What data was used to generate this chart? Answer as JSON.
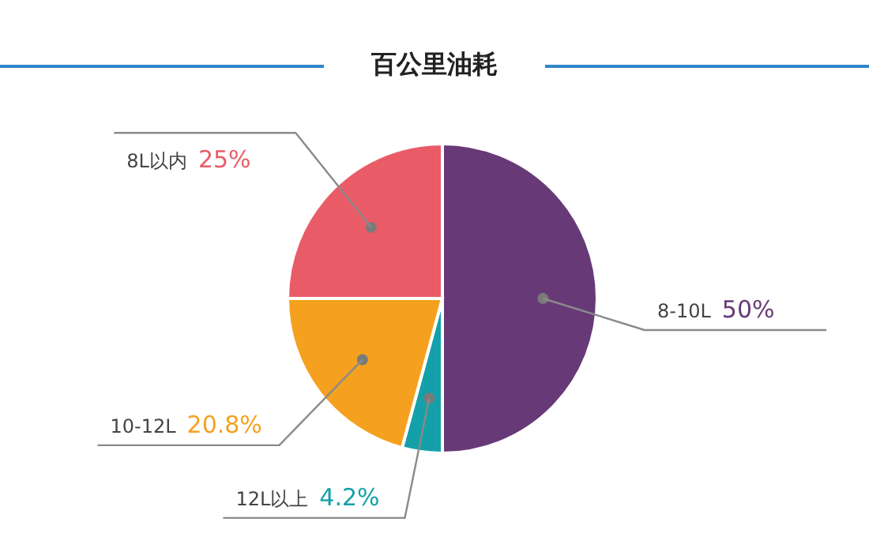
{
  "chart_data": {
    "type": "pie",
    "title": "百公里油耗",
    "categories": [
      "8-10L",
      "12L以上",
      "10-12L",
      "8L以内"
    ],
    "values": [
      50,
      4.2,
      20.8,
      25
    ],
    "colors": [
      "#673a77",
      "#14a0a8",
      "#f5a11f",
      "#e95c67"
    ],
    "value_labels": [
      "50%",
      "4.2%",
      "20.8%",
      "25%"
    ]
  }
}
